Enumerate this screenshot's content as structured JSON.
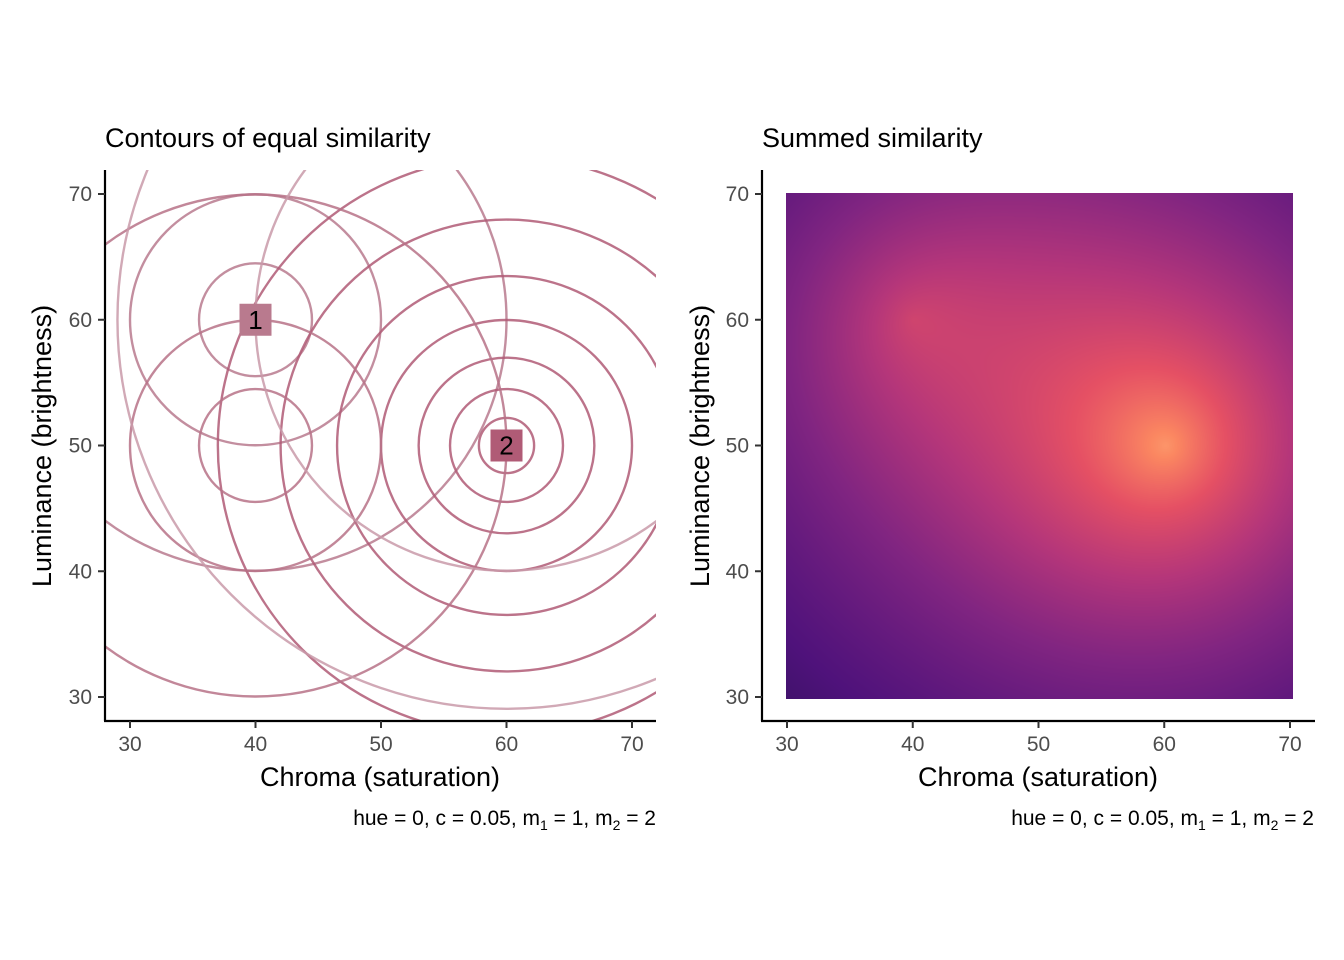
{
  "chart_data": [
    {
      "type": "contour",
      "title": "Contours of equal similarity",
      "xlabel": "Chroma (saturation)",
      "ylabel": "Luminance (brightness)",
      "xlim": [
        30,
        70
      ],
      "ylim": [
        30,
        70
      ],
      "xticks": [
        30,
        40,
        50,
        60,
        70
      ],
      "yticks": [
        30,
        40,
        50,
        60,
        70
      ],
      "caption": {
        "prefix": "hue = 0, c = 0.05, m",
        "sub1": "1",
        "mid": " = 1, m",
        "sub2": "2",
        "suffix": " = 2"
      },
      "exemplars": [
        {
          "label": "1",
          "chroma": 40,
          "luminance": 60,
          "color": "#b97a8e",
          "radii": [
            4.5,
            10,
            20
          ]
        },
        {
          "label": "2",
          "chroma": 60,
          "luminance": 50,
          "color": "#b05b76",
          "radii": [
            2.2,
            4.5,
            7,
            10,
            13.5,
            18,
            23
          ]
        },
        {
          "label": "",
          "chroma": 40,
          "luminance": 50,
          "color": "#b77287",
          "radii": [
            4.5,
            10,
            20
          ]
        },
        {
          "label": "",
          "chroma": 60,
          "luminance": 60,
          "color": "#c99aa9",
          "radii": [
            20,
            31
          ]
        }
      ],
      "contour_color": "#c07a90"
    },
    {
      "type": "heatmap",
      "title": "Summed similarity",
      "xlabel": "Chroma (saturation)",
      "ylabel": "Luminance (brightness)",
      "xlim": [
        30,
        70
      ],
      "ylim": [
        30,
        70
      ],
      "xticks": [
        30,
        40,
        50,
        60,
        70
      ],
      "yticks": [
        30,
        40,
        50,
        60,
        70
      ],
      "caption": {
        "prefix": "hue = 0, c = 0.05, m",
        "sub1": "1",
        "mid": " = 1, m",
        "sub2": "2",
        "suffix": " = 2"
      },
      "peaks": [
        {
          "chroma": 40,
          "luminance": 60,
          "weight": 1
        },
        {
          "chroma": 60,
          "luminance": 50,
          "weight": 2
        }
      ],
      "decay_c": 0.05,
      "colormap": "magma"
    }
  ]
}
